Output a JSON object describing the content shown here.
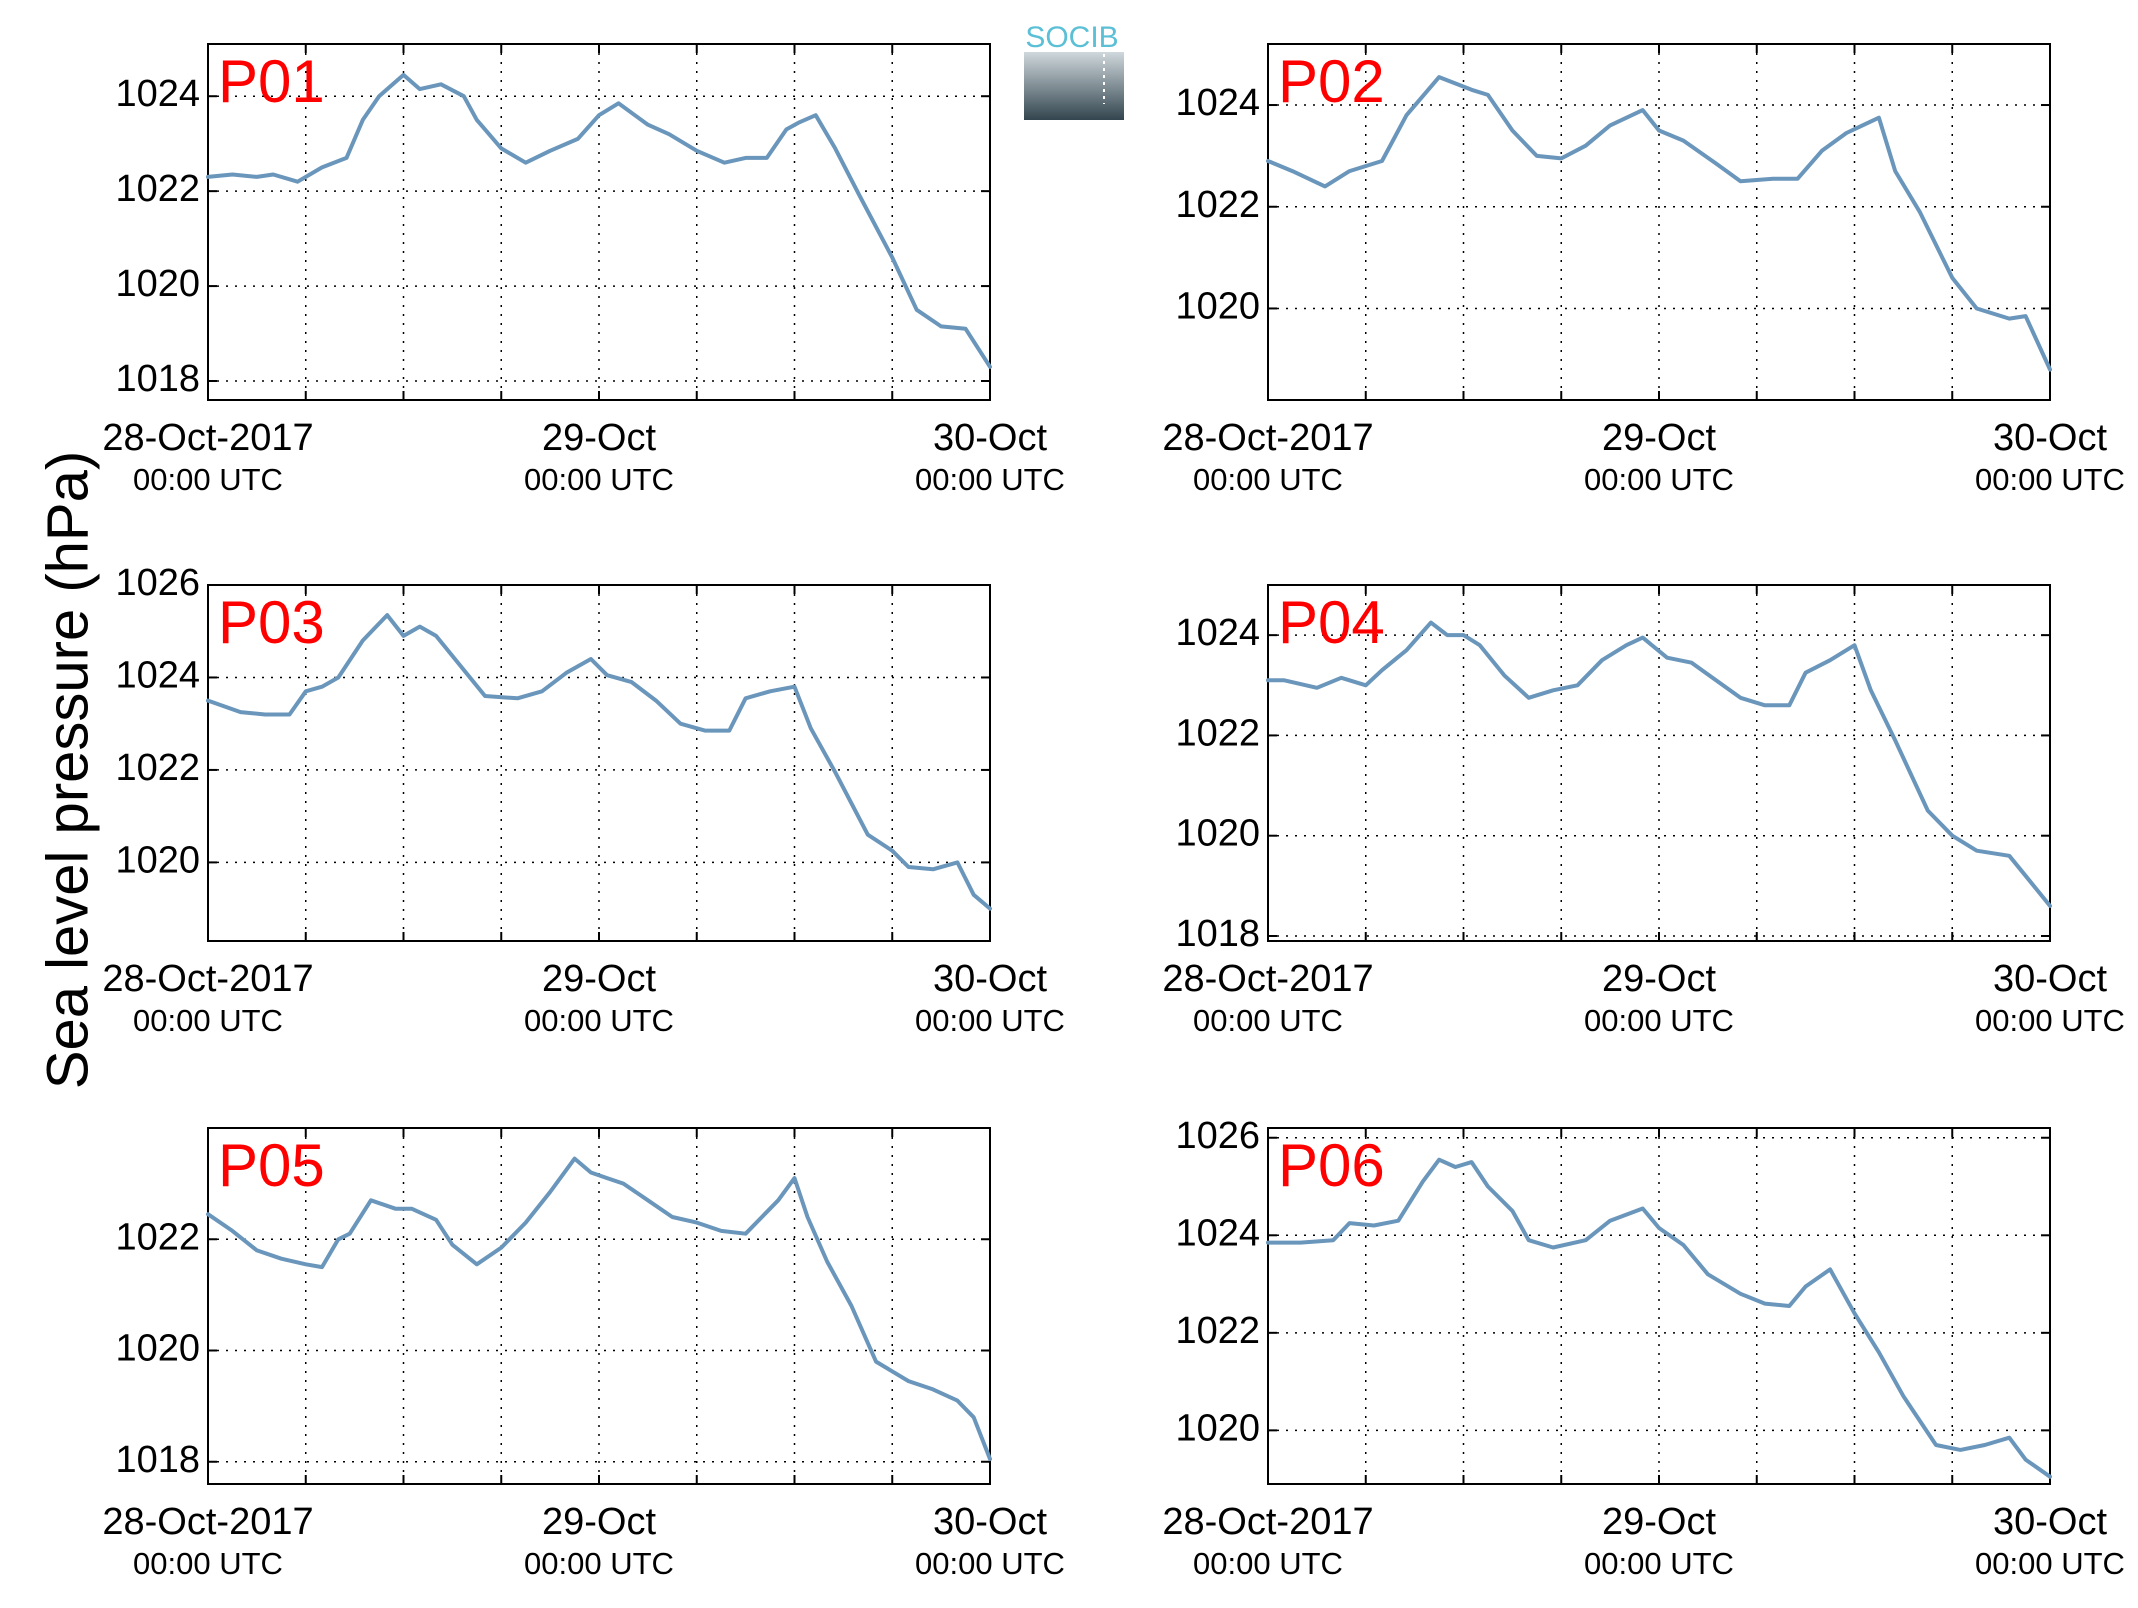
{
  "ylabel": "Sea level pressure (hPa)",
  "logo": {
    "text": "SOCIB",
    "text_color": "#5bbfd6",
    "top_color": "#cfd8dc",
    "bottom_color": "#33454f"
  },
  "line_color": "#6a96bb",
  "label_color": "#ff0000",
  "x_ticks": [
    {
      "day": 0,
      "main": "28-Oct-2017",
      "sub": "00:00 UTC"
    },
    {
      "day": 1,
      "main": "29-Oct",
      "sub": "00:00 UTC"
    },
    {
      "day": 2,
      "main": "30-Oct",
      "sub": "00:00 UTC"
    }
  ],
  "chart_data": [
    {
      "type": "line",
      "label": "P01",
      "xlim_days": [
        0,
        2
      ],
      "ylim": [
        1017.6,
        1025.1
      ],
      "yticks": [
        1018,
        1020,
        1022,
        1024
      ],
      "series": [
        {
          "x_hours": [
            0,
            1.5,
            3,
            4,
            5.5,
            7,
            8.5,
            9.5,
            10.5,
            12,
            13,
            14.3,
            15.7,
            16.5,
            18,
            19.5,
            21,
            22.7,
            24,
            25.2,
            27,
            28.3,
            30,
            31.7,
            33,
            34.3,
            35.5,
            36.3,
            37.3,
            38.5,
            40,
            42,
            43.5,
            45,
            46.5,
            48
          ],
          "values": [
            1022.3,
            1022.35,
            1022.3,
            1022.35,
            1022.2,
            1022.5,
            1022.7,
            1023.5,
            1024.0,
            1024.45,
            1024.15,
            1024.25,
            1024.0,
            1023.5,
            1022.9,
            1022.6,
            1022.85,
            1023.1,
            1023.6,
            1023.85,
            1023.4,
            1023.2,
            1022.85,
            1022.6,
            1022.7,
            1022.7,
            1023.3,
            1023.45,
            1023.6,
            1022.9,
            1021.9,
            1020.6,
            1019.5,
            1019.15,
            1019.1,
            1018.3
          ]
        }
      ]
    },
    {
      "type": "line",
      "label": "P02",
      "xlim_days": [
        0,
        2
      ],
      "ylim": [
        1018.2,
        1025.2
      ],
      "yticks": [
        1020,
        1022,
        1024
      ],
      "series": [
        {
          "x_hours": [
            0,
            1.5,
            3.5,
            5,
            7,
            8.5,
            10.5,
            12.5,
            13.5,
            15,
            16.5,
            18,
            19.5,
            21,
            23,
            24,
            25.5,
            27.5,
            29,
            31,
            32.5,
            34,
            35.5,
            37.5,
            38.5,
            40,
            42,
            43.5,
            45.5,
            46.5,
            48
          ],
          "values": [
            1022.9,
            1022.7,
            1022.4,
            1022.7,
            1022.9,
            1023.8,
            1024.55,
            1024.3,
            1024.2,
            1023.5,
            1023.0,
            1022.95,
            1023.2,
            1023.6,
            1023.9,
            1023.5,
            1023.3,
            1022.85,
            1022.5,
            1022.55,
            1022.55,
            1023.1,
            1023.45,
            1023.75,
            1022.7,
            1021.9,
            1020.6,
            1020.0,
            1019.8,
            1019.85,
            1018.8
          ]
        }
      ]
    },
    {
      "type": "line",
      "label": "P03",
      "xlim_days": [
        0,
        2
      ],
      "ylim": [
        1018.3,
        1026.0
      ],
      "yticks": [
        1020,
        1022,
        1024,
        1026
      ],
      "series": [
        {
          "x_hours": [
            0,
            2,
            3.5,
            5,
            6,
            7,
            8,
            9.5,
            11,
            12,
            13,
            14,
            15.5,
            17,
            19,
            20.5,
            22,
            23.5,
            24.5,
            26,
            27.5,
            29,
            30.5,
            32,
            33,
            34.5,
            36,
            37,
            38.5,
            40.5,
            42,
            43,
            44.5,
            46,
            47,
            48
          ],
          "values": [
            1023.5,
            1023.25,
            1023.2,
            1023.2,
            1023.7,
            1023.8,
            1024.0,
            1024.8,
            1025.35,
            1024.9,
            1025.1,
            1024.9,
            1024.25,
            1023.6,
            1023.55,
            1023.7,
            1024.1,
            1024.4,
            1024.05,
            1023.9,
            1023.5,
            1023.0,
            1022.85,
            1022.85,
            1023.55,
            1023.7,
            1023.8,
            1022.9,
            1021.95,
            1020.6,
            1020.25,
            1019.9,
            1019.85,
            1020.0,
            1019.3,
            1019.0
          ]
        }
      ]
    },
    {
      "type": "line",
      "label": "P04",
      "xlim_days": [
        0,
        2
      ],
      "ylim": [
        1017.9,
        1025.0
      ],
      "yticks": [
        1018,
        1020,
        1022,
        1024
      ],
      "series": [
        {
          "x_hours": [
            0,
            1,
            3,
            4.5,
            6,
            7,
            8.5,
            10,
            11,
            12,
            13,
            14.5,
            16,
            17.5,
            19,
            20.5,
            22,
            23,
            24.5,
            26,
            27.5,
            29,
            30.5,
            32,
            33,
            34.5,
            36,
            37,
            38.5,
            40.5,
            42,
            43.5,
            45.5,
            46.5,
            48
          ],
          "values": [
            1023.1,
            1023.1,
            1022.95,
            1023.15,
            1023.0,
            1023.3,
            1023.7,
            1024.25,
            1024.0,
            1024.0,
            1023.8,
            1023.2,
            1022.75,
            1022.9,
            1023.0,
            1023.5,
            1023.8,
            1023.95,
            1023.55,
            1023.45,
            1023.1,
            1022.75,
            1022.6,
            1022.6,
            1023.25,
            1023.5,
            1023.8,
            1022.9,
            1021.9,
            1020.5,
            1020.0,
            1019.7,
            1019.6,
            1019.2,
            1018.6
          ]
        }
      ]
    },
    {
      "type": "line",
      "label": "P05",
      "xlim_days": [
        0,
        2
      ],
      "ylim": [
        1017.6,
        1024.0
      ],
      "yticks": [
        1018,
        1020,
        1022
      ],
      "series": [
        {
          "x_hours": [
            0,
            1.5,
            3,
            4.5,
            6,
            7,
            8,
            8.7,
            10,
            11.5,
            12.5,
            14,
            15,
            16.5,
            18,
            19.5,
            21,
            22.5,
            23.5,
            24.5,
            25.5,
            27,
            28.5,
            30,
            31.5,
            33,
            34,
            35,
            36,
            36.8,
            38,
            39.5,
            41,
            43,
            44.5,
            46,
            47,
            48
          ],
          "values": [
            1022.45,
            1022.15,
            1021.8,
            1021.65,
            1021.55,
            1021.5,
            1022.0,
            1022.1,
            1022.7,
            1022.55,
            1022.55,
            1022.35,
            1021.9,
            1021.55,
            1021.85,
            1022.3,
            1022.85,
            1023.45,
            1023.2,
            1023.1,
            1023.0,
            1022.7,
            1022.4,
            1022.3,
            1022.15,
            1022.1,
            1022.4,
            1022.7,
            1023.1,
            1022.4,
            1021.6,
            1020.8,
            1019.8,
            1019.45,
            1019.3,
            1019.1,
            1018.8,
            1018.05
          ]
        }
      ]
    },
    {
      "type": "line",
      "label": "P06",
      "xlim_days": [
        0,
        2
      ],
      "ylim": [
        1018.9,
        1026.2
      ],
      "yticks": [
        1020,
        1022,
        1024,
        1026
      ],
      "series": [
        {
          "x_hours": [
            0,
            2,
            4,
            5,
            6.5,
            8,
            9.5,
            10.5,
            11.5,
            12.5,
            13.5,
            15,
            16,
            17.5,
            19.5,
            21,
            23,
            24,
            25.5,
            27,
            29,
            30.5,
            32,
            33,
            34.5,
            36,
            37.5,
            39,
            41,
            42.5,
            44,
            45.5,
            46.5,
            48
          ],
          "values": [
            1023.85,
            1023.85,
            1023.9,
            1024.25,
            1024.2,
            1024.3,
            1025.1,
            1025.55,
            1025.4,
            1025.5,
            1025.0,
            1024.5,
            1023.9,
            1023.75,
            1023.9,
            1024.3,
            1024.55,
            1024.15,
            1023.8,
            1023.2,
            1022.8,
            1022.6,
            1022.55,
            1022.95,
            1023.3,
            1022.4,
            1021.6,
            1020.7,
            1019.7,
            1019.6,
            1019.7,
            1019.85,
            1019.4,
            1019.05
          ]
        }
      ]
    }
  ]
}
